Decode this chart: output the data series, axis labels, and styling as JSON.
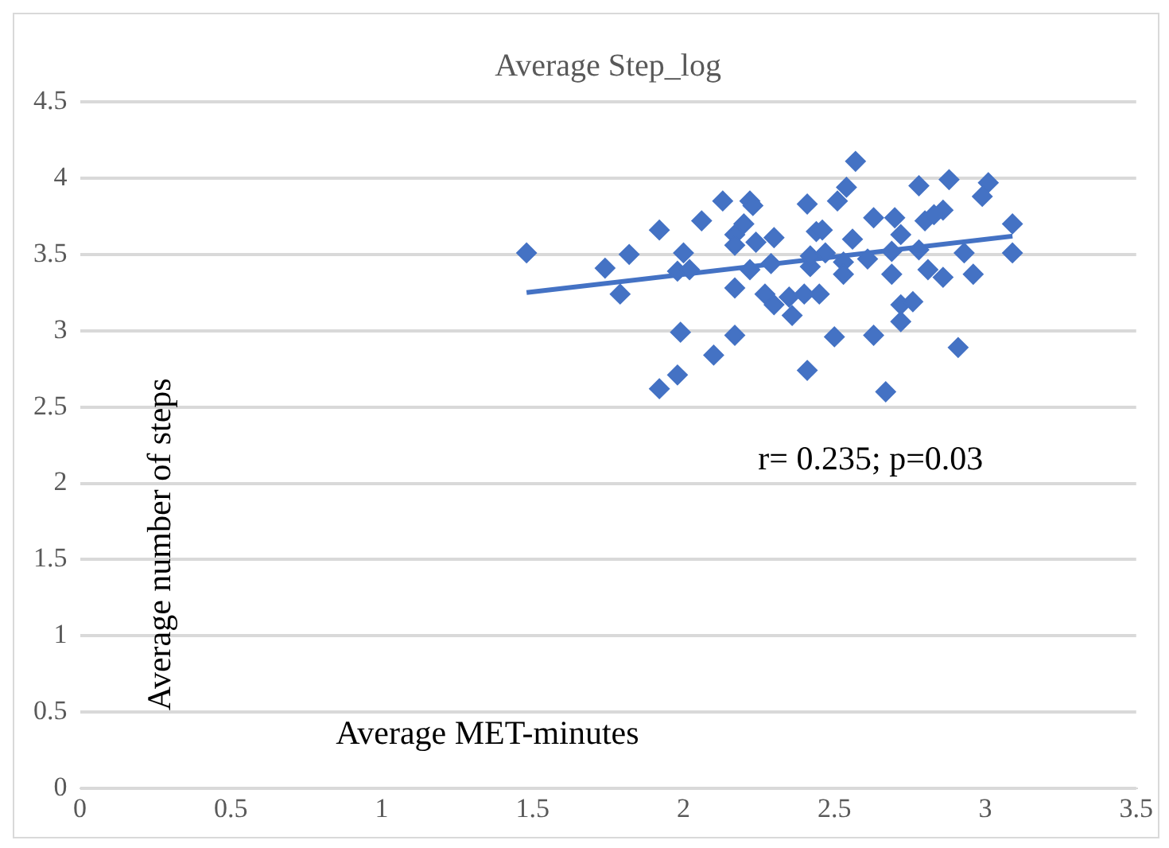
{
  "chart_data": {
    "type": "scatter",
    "title": "Average Step_log",
    "xlabel": "Average MET-minutes",
    "ylabel": "Average number of steps",
    "annotations": [
      "r= 0.235; p=0.03"
    ],
    "xlim": [
      0,
      3.5
    ],
    "xticks": [
      0,
      0.5,
      1,
      1.5,
      2,
      2.5,
      3,
      3.5
    ],
    "ylim": [
      0,
      4.5
    ],
    "yticks": [
      0,
      0.5,
      1,
      1.5,
      2,
      2.5,
      3,
      3.5,
      4,
      4.5
    ],
    "grid": "y",
    "legend": false,
    "series": [
      {
        "color": "#4472c4",
        "marker": "diamond",
        "x": [
          1.48,
          1.74,
          1.79,
          1.82,
          1.92,
          2.0,
          1.98,
          2.02,
          1.99,
          2.17,
          2.1,
          1.98,
          1.92,
          2.06,
          2.13,
          2.22,
          2.23,
          2.17,
          2.2,
          2.17,
          2.24,
          2.3,
          2.17,
          2.22,
          2.29,
          2.27,
          2.3,
          2.36,
          2.35,
          2.41,
          2.41,
          2.44,
          2.42,
          2.4,
          2.57,
          2.54,
          2.51,
          2.78,
          2.88,
          3.01,
          2.99,
          2.46,
          2.63,
          2.7,
          2.8,
          2.86,
          2.83,
          3.09,
          3.09,
          2.56,
          2.72,
          2.42,
          2.47,
          2.53,
          2.61,
          2.69,
          2.78,
          2.93,
          2.53,
          2.69,
          2.81,
          2.86,
          2.96,
          2.45,
          2.72,
          2.76,
          2.72,
          2.5,
          2.63,
          2.91,
          2.67
        ],
        "values": [
          3.51,
          3.41,
          3.24,
          3.5,
          3.66,
          3.51,
          3.39,
          3.4,
          2.99,
          2.97,
          2.84,
          2.71,
          2.62,
          3.72,
          3.85,
          3.85,
          3.82,
          3.63,
          3.7,
          3.56,
          3.58,
          3.61,
          3.28,
          3.4,
          3.44,
          3.24,
          3.17,
          3.1,
          3.22,
          3.83,
          2.74,
          3.65,
          3.42,
          3.24,
          4.11,
          3.94,
          3.85,
          3.95,
          3.99,
          3.97,
          3.88,
          3.66,
          3.74,
          3.74,
          3.72,
          3.79,
          3.76,
          3.7,
          3.51,
          3.6,
          3.63,
          3.49,
          3.51,
          3.45,
          3.47,
          3.52,
          3.53,
          3.51,
          3.37,
          3.37,
          3.4,
          3.35,
          3.37,
          3.24,
          3.17,
          3.19,
          3.06,
          2.96,
          2.97,
          2.89,
          2.6
        ]
      },
      {
        "type": "line",
        "marker": "none",
        "color": "#4472c4",
        "x": [
          1.48,
          3.09
        ],
        "values": [
          3.25,
          3.62
        ]
      }
    ]
  }
}
